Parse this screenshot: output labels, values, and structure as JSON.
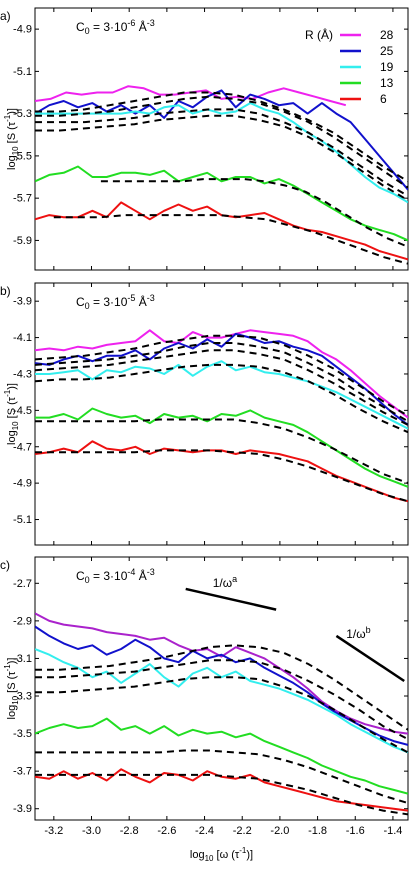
{
  "chart_data": [
    {
      "type": "line",
      "panel_label": "a)",
      "concentration": {
        "prefix": "C",
        "sub": "0",
        "mid": " = 3·10",
        "exp": "-6",
        "unit": " Å",
        "unit_exp": "-3"
      },
      "xlim": [
        -3.3,
        -1.32
      ],
      "ylim": [
        -6.04,
        -4.8
      ],
      "yticks": [
        -4.9,
        -5.1,
        -5.3,
        -5.5,
        -5.7,
        -5.9
      ],
      "ylabel": {
        "pre": "log",
        "sub": "10",
        "mid": " [S (τ",
        "exp": "-1",
        "post": ")]"
      },
      "legend": {
        "title": "R (Å)",
        "position": "top-right"
      },
      "series": [
        {
          "name": "28",
          "color": "#ee22ee",
          "x0": -3.3,
          "x1": -1.65,
          "y": [
            -5.24,
            -5.23,
            -5.2,
            -5.21,
            -5.2,
            -5.2,
            -5.17,
            -5.18,
            -5.21,
            -5.21,
            -5.2,
            -5.19,
            -5.23,
            -5.22,
            -5.23,
            -5.2,
            -5.18,
            -5.2,
            -5.22,
            -5.24,
            -5.26
          ]
        },
        {
          "name": "25",
          "color": "#1111cc",
          "x0": -3.3,
          "x1": -1.32,
          "y": [
            -5.3,
            -5.26,
            -5.24,
            -5.27,
            -5.25,
            -5.29,
            -5.26,
            -5.3,
            -5.26,
            -5.32,
            -5.24,
            -5.27,
            -5.22,
            -5.19,
            -5.27,
            -5.21,
            -5.23,
            -5.26,
            -5.25,
            -5.3,
            -5.25,
            -5.3,
            -5.34,
            -5.42,
            -5.5,
            -5.58,
            -5.66
          ]
        },
        {
          "name": "19",
          "color": "#33eeee",
          "x0": -3.3,
          "x1": -1.32,
          "y": [
            -5.3,
            -5.3,
            -5.3,
            -5.3,
            -5.3,
            -5.3,
            -5.3,
            -5.29,
            -5.3,
            -5.27,
            -5.26,
            -5.3,
            -5.28,
            -5.3,
            -5.29,
            -5.25,
            -5.28,
            -5.3,
            -5.34,
            -5.39,
            -5.43,
            -5.48,
            -5.54,
            -5.6,
            -5.65,
            -5.68,
            -5.72
          ]
        },
        {
          "name": "13",
          "color": "#22dd22",
          "x0": -3.3,
          "x1": -1.32,
          "y": [
            -5.62,
            -5.59,
            -5.58,
            -5.55,
            -5.6,
            -5.6,
            -5.58,
            -5.58,
            -5.59,
            -5.57,
            -5.62,
            -5.6,
            -5.58,
            -5.62,
            -5.6,
            -5.6,
            -5.63,
            -5.61,
            -5.64,
            -5.68,
            -5.72,
            -5.76,
            -5.8,
            -5.83,
            -5.85,
            -5.87,
            -5.9
          ]
        },
        {
          "name": "6",
          "color": "#ee1111",
          "x0": -3.3,
          "x1": -1.32,
          "y": [
            -5.8,
            -5.78,
            -5.79,
            -5.79,
            -5.76,
            -5.79,
            -5.72,
            -5.76,
            -5.8,
            -5.76,
            -5.73,
            -5.76,
            -5.74,
            -5.78,
            -5.79,
            -5.78,
            -5.77,
            -5.8,
            -5.83,
            -5.85,
            -5.86,
            -5.88,
            -5.9,
            -5.92,
            -5.95,
            -5.97,
            -5.99
          ]
        }
      ],
      "fits": [
        {
          "x0": -3.3,
          "x1": -1.32,
          "y": [
            -5.29,
            -5.29,
            -5.28,
            -5.26,
            -5.24,
            -5.22,
            -5.2,
            -5.2,
            -5.21,
            -5.24,
            -5.28,
            -5.33,
            -5.39,
            -5.47,
            -5.55,
            -5.62
          ]
        },
        {
          "x0": -3.3,
          "x1": -1.32,
          "y": [
            -5.31,
            -5.31,
            -5.3,
            -5.29,
            -5.27,
            -5.25,
            -5.23,
            -5.22,
            -5.23,
            -5.25,
            -5.29,
            -5.34,
            -5.41,
            -5.49,
            -5.57,
            -5.65
          ]
        },
        {
          "x0": -3.3,
          "x1": -1.32,
          "y": [
            -5.34,
            -5.34,
            -5.34,
            -5.33,
            -5.32,
            -5.3,
            -5.29,
            -5.28,
            -5.28,
            -5.3,
            -5.34,
            -5.39,
            -5.46,
            -5.54,
            -5.62,
            -5.69
          ]
        },
        {
          "x0": -3.3,
          "x1": -1.32,
          "y": [
            -5.38,
            -5.38,
            -5.37,
            -5.36,
            -5.35,
            -5.33,
            -5.32,
            -5.31,
            -5.31,
            -5.33,
            -5.36,
            -5.41,
            -5.48,
            -5.56,
            -5.64,
            -5.71
          ]
        },
        {
          "x0": -2.95,
          "x1": -1.32,
          "y": [
            -5.62,
            -5.62,
            -5.62,
            -5.62,
            -5.62,
            -5.61,
            -5.61,
            -5.61,
            -5.62,
            -5.64,
            -5.67,
            -5.72,
            -5.78,
            -5.84,
            -5.89,
            -5.93
          ]
        },
        {
          "x0": -3.2,
          "x1": -1.32,
          "y": [
            -5.79,
            -5.79,
            -5.79,
            -5.78,
            -5.78,
            -5.78,
            -5.78,
            -5.78,
            -5.79,
            -5.8,
            -5.83,
            -5.86,
            -5.9,
            -5.94,
            -5.98,
            -6.01
          ]
        }
      ]
    },
    {
      "type": "line",
      "panel_label": "b)",
      "concentration": {
        "prefix": "C",
        "sub": "0",
        "mid": " = 3·10",
        "exp": "-5",
        "unit": " Å",
        "unit_exp": "-3"
      },
      "xlim": [
        -3.3,
        -1.32
      ],
      "ylim": [
        -5.24,
        -3.8
      ],
      "yticks": [
        -3.9,
        -4.1,
        -4.3,
        -4.5,
        -4.7,
        -4.9,
        -5.1
      ],
      "ylabel": {
        "pre": "log",
        "sub": "10",
        "mid": " [S (τ",
        "exp": "-1",
        "post": ")]"
      },
      "series": [
        {
          "name": "28",
          "color": "#ee22ee",
          "x0": -3.3,
          "x1": -1.32,
          "y": [
            -4.17,
            -4.16,
            -4.17,
            -4.15,
            -4.16,
            -4.14,
            -4.13,
            -4.12,
            -4.06,
            -4.12,
            -4.13,
            -4.07,
            -4.1,
            -4.1,
            -4.08,
            -4.06,
            -4.07,
            -4.08,
            -4.09,
            -4.12,
            -4.18,
            -4.22,
            -4.28,
            -4.35,
            -4.42,
            -4.48,
            -4.54
          ]
        },
        {
          "name": "25",
          "color": "#1111cc",
          "x0": -3.3,
          "x1": -1.32,
          "y": [
            -4.24,
            -4.25,
            -4.22,
            -4.2,
            -4.23,
            -4.2,
            -4.2,
            -4.17,
            -4.22,
            -4.16,
            -4.13,
            -4.16,
            -4.11,
            -4.15,
            -4.08,
            -4.1,
            -4.13,
            -4.12,
            -4.15,
            -4.17,
            -4.2,
            -4.26,
            -4.32,
            -4.38,
            -4.45,
            -4.52,
            -4.58
          ]
        },
        {
          "name": "19",
          "color": "#33eeee",
          "x0": -3.3,
          "x1": -1.32,
          "y": [
            -4.3,
            -4.3,
            -4.29,
            -4.28,
            -4.33,
            -4.28,
            -4.29,
            -4.26,
            -4.27,
            -4.3,
            -4.25,
            -4.31,
            -4.26,
            -4.23,
            -4.28,
            -4.26,
            -4.29,
            -4.3,
            -4.32,
            -4.34,
            -4.37,
            -4.4,
            -4.44,
            -4.48,
            -4.52,
            -4.56,
            -4.6
          ]
        },
        {
          "name": "13",
          "color": "#22dd22",
          "x0": -3.3,
          "x1": -1.32,
          "y": [
            -4.54,
            -4.54,
            -4.52,
            -4.55,
            -4.49,
            -4.52,
            -4.54,
            -4.53,
            -4.57,
            -4.52,
            -4.54,
            -4.53,
            -4.56,
            -4.52,
            -4.53,
            -4.5,
            -4.54,
            -4.56,
            -4.58,
            -4.62,
            -4.67,
            -4.72,
            -4.77,
            -4.82,
            -4.86,
            -4.89,
            -4.92
          ]
        },
        {
          "name": "6",
          "color": "#ee1111",
          "x0": -3.3,
          "x1": -1.32,
          "y": [
            -4.74,
            -4.73,
            -4.71,
            -4.73,
            -4.67,
            -4.71,
            -4.72,
            -4.7,
            -4.74,
            -4.71,
            -4.72,
            -4.73,
            -4.72,
            -4.72,
            -4.74,
            -4.72,
            -4.73,
            -4.74,
            -4.76,
            -4.78,
            -4.82,
            -4.86,
            -4.89,
            -4.92,
            -4.95,
            -4.98,
            -5.0
          ]
        }
      ],
      "fits": [
        {
          "x0": -3.3,
          "x1": -1.32,
          "y": [
            -4.22,
            -4.21,
            -4.2,
            -4.18,
            -4.16,
            -4.13,
            -4.11,
            -4.09,
            -4.09,
            -4.1,
            -4.14,
            -4.2,
            -4.27,
            -4.36,
            -4.45,
            -4.53
          ]
        },
        {
          "x0": -3.3,
          "x1": -1.32,
          "y": [
            -4.25,
            -4.24,
            -4.23,
            -4.22,
            -4.2,
            -4.18,
            -4.15,
            -4.13,
            -4.13,
            -4.15,
            -4.18,
            -4.24,
            -4.31,
            -4.4,
            -4.48,
            -4.56
          ]
        },
        {
          "x0": -3.3,
          "x1": -1.32,
          "y": [
            -4.28,
            -4.27,
            -4.26,
            -4.25,
            -4.23,
            -4.21,
            -4.19,
            -4.17,
            -4.17,
            -4.19,
            -4.22,
            -4.28,
            -4.35,
            -4.43,
            -4.51,
            -4.58
          ]
        },
        {
          "x0": -3.3,
          "x1": -1.32,
          "y": [
            -4.34,
            -4.33,
            -4.33,
            -4.32,
            -4.3,
            -4.28,
            -4.26,
            -4.25,
            -4.25,
            -4.26,
            -4.29,
            -4.34,
            -4.41,
            -4.49,
            -4.56,
            -4.62
          ]
        },
        {
          "x0": -3.3,
          "x1": -1.32,
          "y": [
            -4.56,
            -4.56,
            -4.56,
            -4.56,
            -4.56,
            -4.55,
            -4.55,
            -4.55,
            -4.55,
            -4.57,
            -4.6,
            -4.65,
            -4.71,
            -4.78,
            -4.85,
            -4.9
          ]
        },
        {
          "x0": -3.3,
          "x1": -1.32,
          "y": [
            -4.73,
            -4.73,
            -4.73,
            -4.73,
            -4.73,
            -4.72,
            -4.72,
            -4.72,
            -4.73,
            -4.74,
            -4.77,
            -4.81,
            -4.86,
            -4.91,
            -4.96,
            -5.0
          ]
        }
      ]
    },
    {
      "type": "line",
      "panel_label": "c)",
      "concentration": {
        "prefix": "C",
        "sub": "0",
        "mid": " = 3·10",
        "exp": "-4",
        "unit": " Å",
        "unit_exp": "-3"
      },
      "xlim": [
        -3.3,
        -1.32
      ],
      "ylim": [
        -3.96,
        -2.56
      ],
      "yticks": [
        -2.7,
        -2.9,
        -3.1,
        -3.3,
        -3.5,
        -3.7,
        -3.9
      ],
      "ylabel": {
        "pre": "log",
        "sub": "10",
        "mid": " [S (τ",
        "exp": "-1",
        "post": ")]"
      },
      "xticks": [
        -3.2,
        -3.0,
        -2.8,
        -2.6,
        -2.4,
        -2.2,
        -2.0,
        -1.8,
        -1.6,
        -1.4
      ],
      "xlabel": {
        "pre": "log",
        "sub": "10",
        "mid": " [ω (τ",
        "exp": "-1",
        "post": ")]"
      },
      "annotations": [
        {
          "base": "1/ω",
          "exp": "a",
          "line": [
            [
              -2.5,
              -2.73
            ],
            [
              -2.02,
              -2.84
            ]
          ]
        },
        {
          "base": "1/ω",
          "exp": "b",
          "line": [
            [
              -1.7,
              -2.98
            ],
            [
              -1.34,
              -3.22
            ]
          ]
        }
      ],
      "series": [
        {
          "name": "28",
          "color": "#aa22cc",
          "x0": -3.3,
          "x1": -1.32,
          "y": [
            -2.86,
            -2.9,
            -2.92,
            -2.93,
            -2.94,
            -2.96,
            -2.97,
            -2.98,
            -3.0,
            -2.99,
            -3.03,
            -3.06,
            -3.05,
            -3.09,
            -3.04,
            -3.07,
            -3.1,
            -3.15,
            -3.2,
            -3.26,
            -3.33,
            -3.38,
            -3.42,
            -3.45,
            -3.47,
            -3.49,
            -3.5
          ]
        },
        {
          "name": "25",
          "color": "#1111cc",
          "x0": -3.3,
          "x1": -1.32,
          "y": [
            -2.93,
            -2.98,
            -3.02,
            -3.05,
            -3.03,
            -3.08,
            -3.05,
            -3.0,
            -3.04,
            -3.1,
            -3.12,
            -3.06,
            -3.1,
            -3.08,
            -3.12,
            -3.1,
            -3.15,
            -3.19,
            -3.23,
            -3.28,
            -3.34,
            -3.39,
            -3.43,
            -3.47,
            -3.51,
            -3.54,
            -3.56
          ]
        },
        {
          "name": "19",
          "color": "#33eeee",
          "x0": -3.3,
          "x1": -1.32,
          "y": [
            -3.05,
            -3.08,
            -3.12,
            -3.15,
            -3.2,
            -3.17,
            -3.23,
            -3.18,
            -3.13,
            -3.2,
            -3.25,
            -3.18,
            -3.15,
            -3.2,
            -3.17,
            -3.22,
            -3.24,
            -3.26,
            -3.29,
            -3.32,
            -3.36,
            -3.4,
            -3.45,
            -3.49,
            -3.53,
            -3.57,
            -3.6
          ]
        },
        {
          "name": "13",
          "color": "#22dd22",
          "x0": -3.3,
          "x1": -1.32,
          "y": [
            -3.5,
            -3.47,
            -3.45,
            -3.47,
            -3.46,
            -3.42,
            -3.48,
            -3.46,
            -3.5,
            -3.46,
            -3.51,
            -3.48,
            -3.5,
            -3.49,
            -3.52,
            -3.5,
            -3.54,
            -3.57,
            -3.6,
            -3.63,
            -3.67,
            -3.7,
            -3.73,
            -3.75,
            -3.78,
            -3.8,
            -3.82
          ]
        },
        {
          "name": "6",
          "color": "#ee1111",
          "x0": -3.3,
          "x1": -1.32,
          "y": [
            -3.73,
            -3.74,
            -3.7,
            -3.74,
            -3.71,
            -3.75,
            -3.69,
            -3.73,
            -3.76,
            -3.71,
            -3.72,
            -3.75,
            -3.7,
            -3.73,
            -3.74,
            -3.72,
            -3.76,
            -3.78,
            -3.8,
            -3.82,
            -3.84,
            -3.86,
            -3.87,
            -3.88,
            -3.89,
            -3.9,
            -3.91
          ]
        }
      ],
      "fits": [
        {
          "x0": -3.3,
          "x1": -1.32,
          "y": [
            -3.16,
            -3.16,
            -3.15,
            -3.14,
            -3.12,
            -3.1,
            -3.07,
            -3.04,
            -3.03,
            -3.04,
            -3.07,
            -3.13,
            -3.21,
            -3.3,
            -3.39,
            -3.48
          ]
        },
        {
          "x0": -3.3,
          "x1": -1.32,
          "y": [
            -3.2,
            -3.2,
            -3.19,
            -3.18,
            -3.17,
            -3.15,
            -3.13,
            -3.11,
            -3.11,
            -3.12,
            -3.16,
            -3.22,
            -3.29,
            -3.37,
            -3.46,
            -3.53
          ]
        },
        {
          "x0": -3.3,
          "x1": -1.32,
          "y": [
            -3.28,
            -3.28,
            -3.27,
            -3.26,
            -3.25,
            -3.23,
            -3.21,
            -3.2,
            -3.2,
            -3.21,
            -3.25,
            -3.3,
            -3.37,
            -3.45,
            -3.53,
            -3.6
          ]
        },
        {
          "x0": -3.3,
          "x1": -1.32,
          "y": [
            -3.6,
            -3.6,
            -3.6,
            -3.6,
            -3.6,
            -3.6,
            -3.59,
            -3.59,
            -3.6,
            -3.61,
            -3.64,
            -3.68,
            -3.73,
            -3.78,
            -3.83,
            -3.87
          ]
        },
        {
          "x0": -3.3,
          "x1": -1.32,
          "y": [
            -3.72,
            -3.72,
            -3.72,
            -3.72,
            -3.72,
            -3.72,
            -3.72,
            -3.72,
            -3.73,
            -3.74,
            -3.77,
            -3.8,
            -3.84,
            -3.88,
            -3.91,
            -3.93
          ]
        }
      ]
    }
  ]
}
